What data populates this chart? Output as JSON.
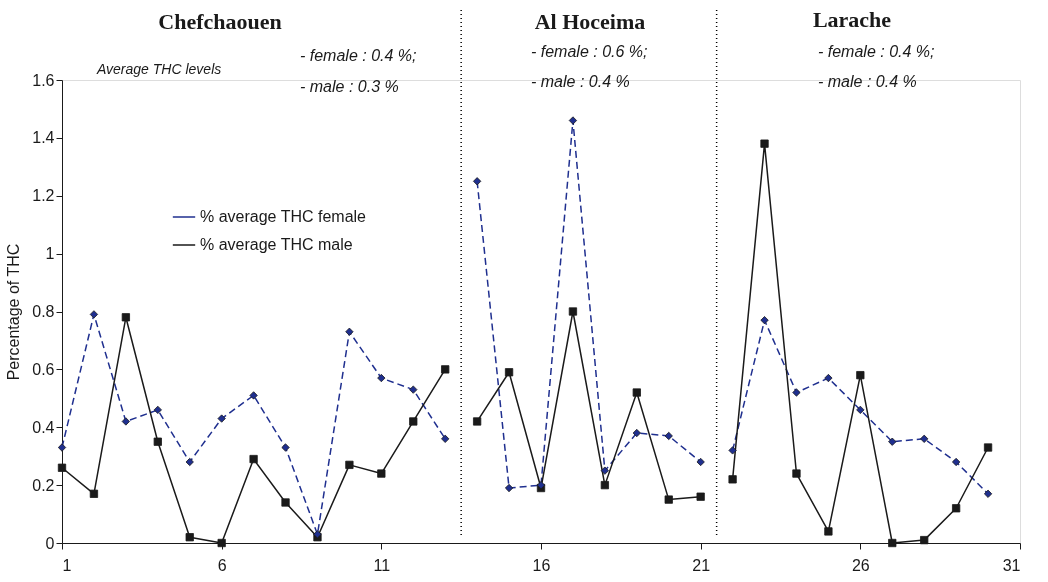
{
  "chart_data": {
    "type": "line",
    "ylabel": "Percentage of THC",
    "x": [
      1,
      2,
      3,
      4,
      5,
      6,
      7,
      8,
      9,
      10,
      11,
      12,
      13,
      13.5,
      14,
      15,
      16,
      17,
      18,
      19,
      20,
      21,
      21.5,
      22,
      23,
      24,
      25,
      26,
      27,
      28,
      29,
      30
    ],
    "series": [
      {
        "name": "% average THC female",
        "color": "#1f2f8f",
        "line_style": "dashed",
        "marker": "diamond",
        "values": [
          0.33,
          0.79,
          0.42,
          0.46,
          0.28,
          0.43,
          0.51,
          0.33,
          0.03,
          0.73,
          0.57,
          0.53,
          0.36,
          null,
          1.25,
          0.19,
          0.2,
          1.46,
          0.25,
          0.38,
          0.37,
          0.28,
          null,
          0.32,
          0.77,
          0.52,
          0.57,
          0.46,
          0.35,
          0.36,
          0.28,
          0.17
        ]
      },
      {
        "name": "% average THC male",
        "color": "#1a1a1a",
        "line_style": "solid",
        "marker": "square",
        "values": [
          0.26,
          0.17,
          0.78,
          0.35,
          0.02,
          0.0,
          0.29,
          0.14,
          0.02,
          0.27,
          0.24,
          0.42,
          0.6,
          null,
          0.42,
          0.59,
          0.19,
          0.8,
          0.2,
          0.52,
          0.15,
          0.16,
          null,
          0.22,
          1.38,
          0.24,
          0.04,
          0.58,
          0.0,
          0.01,
          0.12,
          0.33
        ]
      }
    ],
    "xlim": [
      1,
      31
    ],
    "xticks": [
      1,
      6,
      11,
      16,
      21,
      26,
      31
    ],
    "ylim": [
      0,
      1.6
    ],
    "yticks": [
      0,
      0.2,
      0.4,
      0.6,
      0.8,
      1,
      1.2,
      1.4,
      1.6
    ],
    "grid": false,
    "legend": "top left",
    "ref_lines": [
      {
        "axis": "x",
        "value": 13.5,
        "color": "#000000",
        "line_style": "dotted"
      },
      {
        "axis": "x",
        "value": 21.5,
        "color": "#000000",
        "line_style": "dotted"
      }
    ],
    "annotations": [
      "Chefchaouen",
      "Al Hoceima",
      "Larache",
      "Average THC levels",
      "- female : 0.4 %;",
      "- male : 0.3  %",
      "- female : 0.6 %;",
      "- male : 0.4  %",
      "-  female : 0.4 %;",
      "- male : 0.4  %"
    ]
  }
}
